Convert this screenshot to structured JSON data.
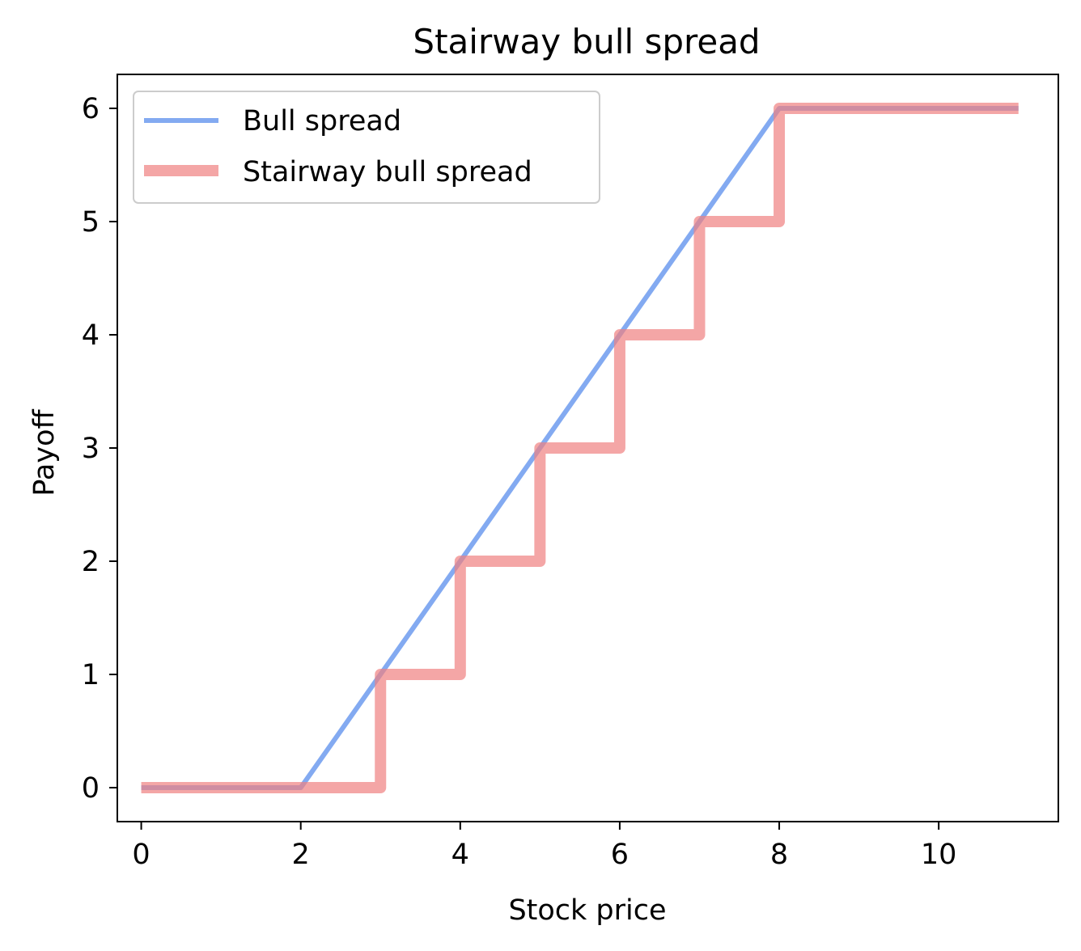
{
  "chart_data": {
    "type": "line",
    "title": "Stairway bull spread",
    "xlabel": "Stock price",
    "ylabel": "Payoff",
    "xlim": [
      -0.3,
      11.5
    ],
    "ylim": [
      -0.3,
      6.3
    ],
    "xticks": [
      0,
      2,
      4,
      6,
      8,
      10
    ],
    "yticks": [
      0,
      1,
      2,
      3,
      4,
      5,
      6
    ],
    "grid": false,
    "legend_position": "upper-left",
    "series": [
      {
        "name": "Bull spread",
        "color": "#6495ED",
        "x": [
          0,
          2,
          8,
          11
        ],
        "y": [
          0,
          0,
          6,
          6
        ]
      },
      {
        "name": "Stairway bull spread",
        "color": "#F08080",
        "x": [
          0,
          3,
          3,
          4,
          4,
          5,
          5,
          6,
          6,
          7,
          7,
          8,
          8,
          11
        ],
        "y": [
          0,
          0,
          1,
          1,
          2,
          2,
          3,
          3,
          4,
          4,
          5,
          5,
          6,
          6
        ]
      }
    ]
  }
}
